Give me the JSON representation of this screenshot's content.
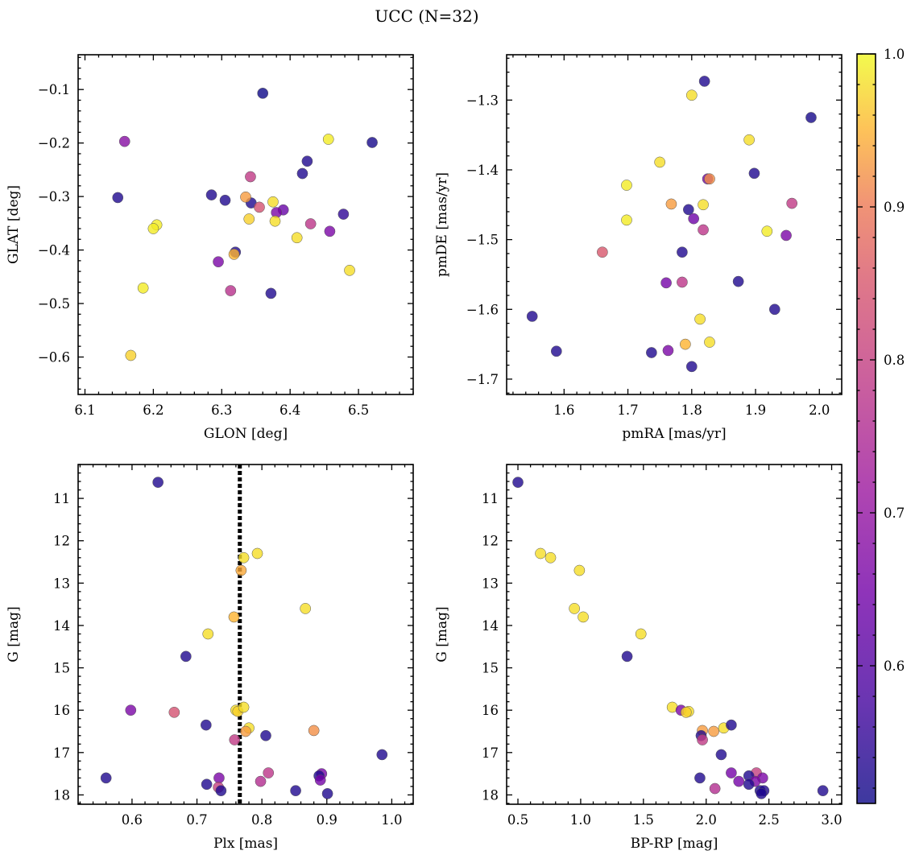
{
  "title": "UCC (N=32)",
  "colorbar": {
    "ticks": [
      "0.6",
      "0.7",
      "0.8",
      "0.9",
      "1.0"
    ],
    "tick_values": [
      0.6,
      0.7,
      0.8,
      0.9,
      1.0
    ],
    "range": [
      0.51,
      1.0
    ],
    "colormap": "plasma"
  },
  "chart_data": [
    {
      "type": "scatter",
      "xlabel": "GLON [deg]",
      "ylabel": "GLAT [deg]",
      "xlim": [
        6.09,
        6.58
      ],
      "ylim": [
        -0.67,
        -0.035
      ],
      "invert_y": false,
      "xticks": [
        6.1,
        6.2,
        6.3,
        6.4,
        6.5
      ],
      "yticks": [
        -0.6,
        -0.5,
        -0.4,
        -0.3,
        -0.2,
        -0.1
      ],
      "xtick_labels": [
        "6.1",
        "6.2",
        "6.3",
        "6.4",
        "6.5"
      ],
      "ytick_labels": [
        "−0.6",
        "−0.5",
        "−0.4",
        "−0.3",
        "−0.2",
        "−0.1"
      ],
      "x": [
        6.36,
        6.52,
        6.158,
        6.456,
        6.425,
        6.418,
        6.148,
        6.285,
        6.305,
        6.342,
        6.343,
        6.335,
        6.375,
        6.39,
        6.38,
        6.205,
        6.2,
        6.34,
        6.378,
        6.43,
        6.41,
        6.478,
        6.458,
        6.32,
        6.318,
        6.295,
        6.487,
        6.313,
        6.372,
        6.185,
        6.167,
        6.355
      ],
      "y": [
        -0.107,
        -0.199,
        -0.197,
        -0.193,
        -0.234,
        -0.257,
        -0.302,
        -0.297,
        -0.307,
        -0.263,
        -0.312,
        -0.301,
        -0.31,
        -0.325,
        -0.33,
        -0.353,
        -0.36,
        -0.342,
        -0.346,
        -0.351,
        -0.377,
        -0.333,
        -0.365,
        -0.404,
        -0.408,
        -0.422,
        -0.438,
        -0.476,
        -0.481,
        -0.471,
        -0.597,
        -0.32
      ],
      "c": [
        0.51,
        0.52,
        0.68,
        0.99,
        0.53,
        0.53,
        0.53,
        0.53,
        0.53,
        0.79,
        0.53,
        0.93,
        0.98,
        0.63,
        0.66,
        0.99,
        0.99,
        0.97,
        0.98,
        0.78,
        0.98,
        0.55,
        0.66,
        0.53,
        0.95,
        0.66,
        0.98,
        0.77,
        0.53,
        0.99,
        0.97,
        0.84
      ]
    },
    {
      "type": "scatter",
      "xlabel": "pmRA [mas/yr]",
      "ylabel": "pmDE [mas/yr]",
      "xlim": [
        1.51,
        2.035
      ],
      "ylim": [
        -1.722,
        -1.235
      ],
      "invert_y": false,
      "xticks": [
        1.6,
        1.7,
        1.8,
        1.9,
        2.0
      ],
      "yticks": [
        -1.7,
        -1.6,
        -1.5,
        -1.4,
        -1.3
      ],
      "xtick_labels": [
        "1.6",
        "1.7",
        "1.8",
        "1.9",
        "2.0"
      ],
      "ytick_labels": [
        "−1.7",
        "−1.6",
        "−1.5",
        "−1.4",
        "−1.3"
      ],
      "x": [
        1.82,
        1.8,
        1.987,
        1.89,
        1.75,
        1.898,
        1.825,
        1.828,
        1.698,
        1.818,
        1.795,
        1.768,
        1.957,
        1.698,
        1.803,
        1.818,
        1.918,
        1.948,
        1.785,
        1.66,
        1.873,
        1.76,
        1.785,
        1.93,
        1.55,
        1.813,
        1.828,
        1.79,
        1.588,
        1.763,
        1.737,
        1.8
      ],
      "y": [
        -1.273,
        -1.293,
        -1.325,
        -1.357,
        -1.389,
        -1.405,
        -1.413,
        -1.413,
        -1.422,
        -1.45,
        -1.457,
        -1.449,
        -1.448,
        -1.472,
        -1.47,
        -1.486,
        -1.488,
        -1.494,
        -1.518,
        -1.518,
        -1.56,
        -1.562,
        -1.561,
        -1.6,
        -1.61,
        -1.614,
        -1.647,
        -1.65,
        -1.66,
        -1.659,
        -1.662,
        -1.682
      ],
      "c": [
        0.53,
        0.98,
        0.52,
        0.98,
        0.98,
        0.53,
        0.65,
        0.92,
        0.99,
        0.98,
        0.53,
        0.93,
        0.79,
        0.99,
        0.64,
        0.78,
        0.99,
        0.66,
        0.53,
        0.85,
        0.53,
        0.65,
        0.78,
        0.53,
        0.53,
        0.98,
        0.98,
        0.95,
        0.53,
        0.66,
        0.53,
        0.53
      ]
    },
    {
      "type": "scatter",
      "xlabel": "Plx [mas]",
      "ylabel": "G [mag]",
      "xlim": [
        0.517,
        1.033
      ],
      "ylim": [
        10.2,
        18.22
      ],
      "invert_y": true,
      "xticks": [
        0.6,
        0.7,
        0.8,
        0.9,
        1.0
      ],
      "yticks": [
        11,
        12,
        13,
        14,
        15,
        16,
        17,
        18
      ],
      "xtick_labels": [
        "0.6",
        "0.7",
        "0.8",
        "0.9",
        "1.0"
      ],
      "ytick_labels": [
        "11",
        "12",
        "13",
        "14",
        "15",
        "16",
        "17",
        "18"
      ],
      "vline": 0.766,
      "x": [
        0.64,
        0.793,
        0.772,
        0.768,
        0.867,
        0.757,
        0.717,
        0.683,
        0.598,
        0.665,
        0.76,
        0.763,
        0.772,
        0.78,
        0.775,
        0.714,
        0.88,
        0.806,
        0.758,
        0.985,
        0.81,
        0.892,
        0.888,
        0.89,
        0.56,
        0.734,
        0.798,
        0.715,
        0.733,
        0.737,
        0.852,
        0.901
      ],
      "y": [
        10.62,
        12.3,
        12.4,
        12.7,
        13.6,
        13.8,
        14.2,
        14.73,
        16.0,
        16.05,
        16.0,
        16.03,
        15.93,
        16.42,
        16.5,
        16.35,
        16.48,
        16.6,
        16.7,
        17.05,
        17.48,
        17.5,
        17.55,
        17.65,
        17.6,
        17.6,
        17.68,
        17.75,
        17.82,
        17.9,
        17.9,
        17.97
      ],
      "c": [
        0.53,
        0.98,
        0.98,
        0.94,
        0.98,
        0.95,
        0.98,
        0.53,
        0.66,
        0.84,
        0.98,
        0.97,
        0.98,
        0.98,
        0.93,
        0.53,
        0.92,
        0.53,
        0.79,
        0.53,
        0.78,
        0.65,
        0.53,
        0.65,
        0.53,
        0.66,
        0.76,
        0.53,
        0.8,
        0.53,
        0.53,
        0.53
      ]
    },
    {
      "type": "scatter",
      "xlabel": "BP-RP [mag]",
      "ylabel": "G [mag]",
      "xlim": [
        0.41,
        3.08
      ],
      "ylim": [
        10.2,
        18.22
      ],
      "invert_y": true,
      "xticks": [
        0.5,
        1.0,
        1.5,
        2.0,
        2.5,
        3.0
      ],
      "yticks": [
        11,
        12,
        13,
        14,
        15,
        16,
        17,
        18
      ],
      "xtick_labels": [
        "0.5",
        "1.0",
        "1.5",
        "2.0",
        "2.5",
        "3.0"
      ],
      "ytick_labels": [
        "11",
        "12",
        "13",
        "14",
        "15",
        "16",
        "17",
        "18"
      ],
      "x": [
        0.5,
        0.68,
        0.76,
        0.99,
        0.95,
        1.02,
        1.48,
        1.37,
        1.73,
        1.8,
        1.86,
        1.84,
        1.97,
        2.06,
        2.14,
        2.2,
        1.96,
        1.97,
        2.12,
        2.2,
        2.4,
        2.45,
        2.26,
        2.34,
        2.39,
        1.95,
        2.34,
        2.43,
        2.07,
        2.46,
        2.44,
        2.93
      ],
      "y": [
        10.62,
        12.3,
        12.4,
        12.7,
        13.6,
        13.8,
        14.2,
        14.73,
        15.93,
        16.0,
        16.03,
        16.05,
        16.48,
        16.5,
        16.42,
        16.35,
        16.6,
        16.7,
        17.05,
        17.48,
        17.48,
        17.6,
        17.68,
        17.55,
        17.68,
        17.6,
        17.75,
        17.9,
        17.85,
        17.9,
        17.97,
        17.9
      ],
      "c": [
        0.53,
        0.98,
        0.98,
        0.98,
        0.98,
        0.98,
        0.98,
        0.53,
        0.98,
        0.66,
        0.98,
        0.97,
        0.93,
        0.93,
        0.98,
        0.53,
        0.53,
        0.79,
        0.53,
        0.65,
        0.8,
        0.66,
        0.65,
        0.53,
        0.66,
        0.53,
        0.53,
        0.53,
        0.76,
        0.53,
        0.53,
        0.53
      ]
    }
  ]
}
